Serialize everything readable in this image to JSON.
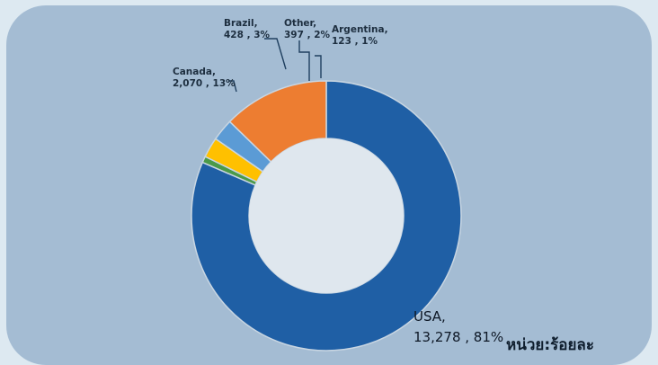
{
  "chart_data": {
    "type": "pie",
    "style": "donut",
    "slices": [
      {
        "name": "USA",
        "value": 13278,
        "value_label": "13,278",
        "percent": 81,
        "color": "#1f5fa5"
      },
      {
        "name": "Argentina",
        "value": 123,
        "value_label": "123",
        "percent": 1,
        "color": "#4b9a49"
      },
      {
        "name": "Other",
        "value": 397,
        "value_label": "397",
        "percent": 2,
        "color": "#ffc000"
      },
      {
        "name": "Brazil",
        "value": 428,
        "value_label": "428",
        "percent": 3,
        "color": "#5b9bd5"
      },
      {
        "name": "Canada",
        "value": 2070,
        "value_label": "2,070",
        "percent": 13,
        "color": "#ed7d31"
      }
    ],
    "labels": {
      "usa": {
        "line1": "USA,",
        "line2": "13,278 , 81%"
      },
      "argentina": {
        "line1": "Argentina,",
        "line2": "123 , 1%"
      },
      "other": {
        "line1": "Other,",
        "line2": "397 , 2%"
      },
      "brazil": {
        "line1": "Brazil,",
        "line2": "428 , 3%"
      },
      "canada": {
        "line1": "Canada,",
        "line2": "2,070 , 13%"
      }
    },
    "unit_label": "หน่วย:ร้อยละ"
  }
}
